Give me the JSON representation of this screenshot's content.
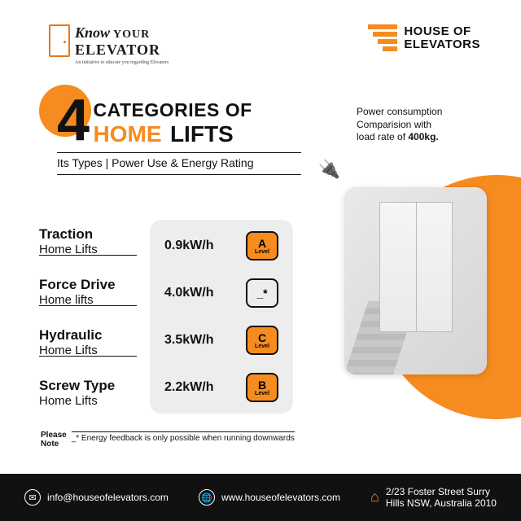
{
  "colors": {
    "accent": "#f68b1f",
    "green": "#0a8a2a",
    "footer_bg": "#111111",
    "panel_bg": "#ededed",
    "text": "#111111"
  },
  "header": {
    "kye": {
      "know": "Know",
      "your": "YOUR",
      "elevator": "ELEVATOR",
      "tagline": "An initiative to educate you regarding Elevators"
    },
    "hoe": {
      "line1": "HOUSE OF",
      "line2": "ELEVATORS"
    }
  },
  "title": {
    "number": "4",
    "categories": "CATEGORIES OF",
    "home": "HOME",
    "lifts": "LIFTS",
    "subtitle": "Its Types | Power Use & Energy Rating"
  },
  "power_note": {
    "l1": "Power consumption",
    "l2": "Comparision with",
    "l3": "load rate of ",
    "bold": "400kg."
  },
  "table": {
    "rows": [
      {
        "name_top": "Traction",
        "name_bot": "Home Lifts",
        "kwh": "0.9kW/h",
        "level": "A",
        "level_word": "Level",
        "badge_bg": "#f68b1f"
      },
      {
        "name_top": "Force Drive",
        "name_bot": "Home lifts",
        "kwh": "4.0kW/h",
        "level": "_*",
        "level_word": "",
        "badge_bg": "#ededed"
      },
      {
        "name_top": "Hydraulic",
        "name_bot": "Home Lifts",
        "kwh": "3.5kW/h",
        "level": "C",
        "level_word": "Level",
        "badge_bg": "#f68b1f"
      },
      {
        "name_top": "Screw Type",
        "name_bot": "Home Lifts",
        "kwh": "2.2kW/h",
        "level": "B",
        "level_word": "Level",
        "badge_bg": "#f68b1f"
      }
    ]
  },
  "footnote": {
    "please": "Please",
    "note": "Note",
    "text": "_* Energy feedback is only possible when running downwards"
  },
  "footer": {
    "email": "info@houseofelevators.com",
    "web": "www.houseofelevators.com",
    "address_l1": "2/23 Foster Street Surry",
    "address_l2": "Hills NSW, Australia 2010"
  }
}
